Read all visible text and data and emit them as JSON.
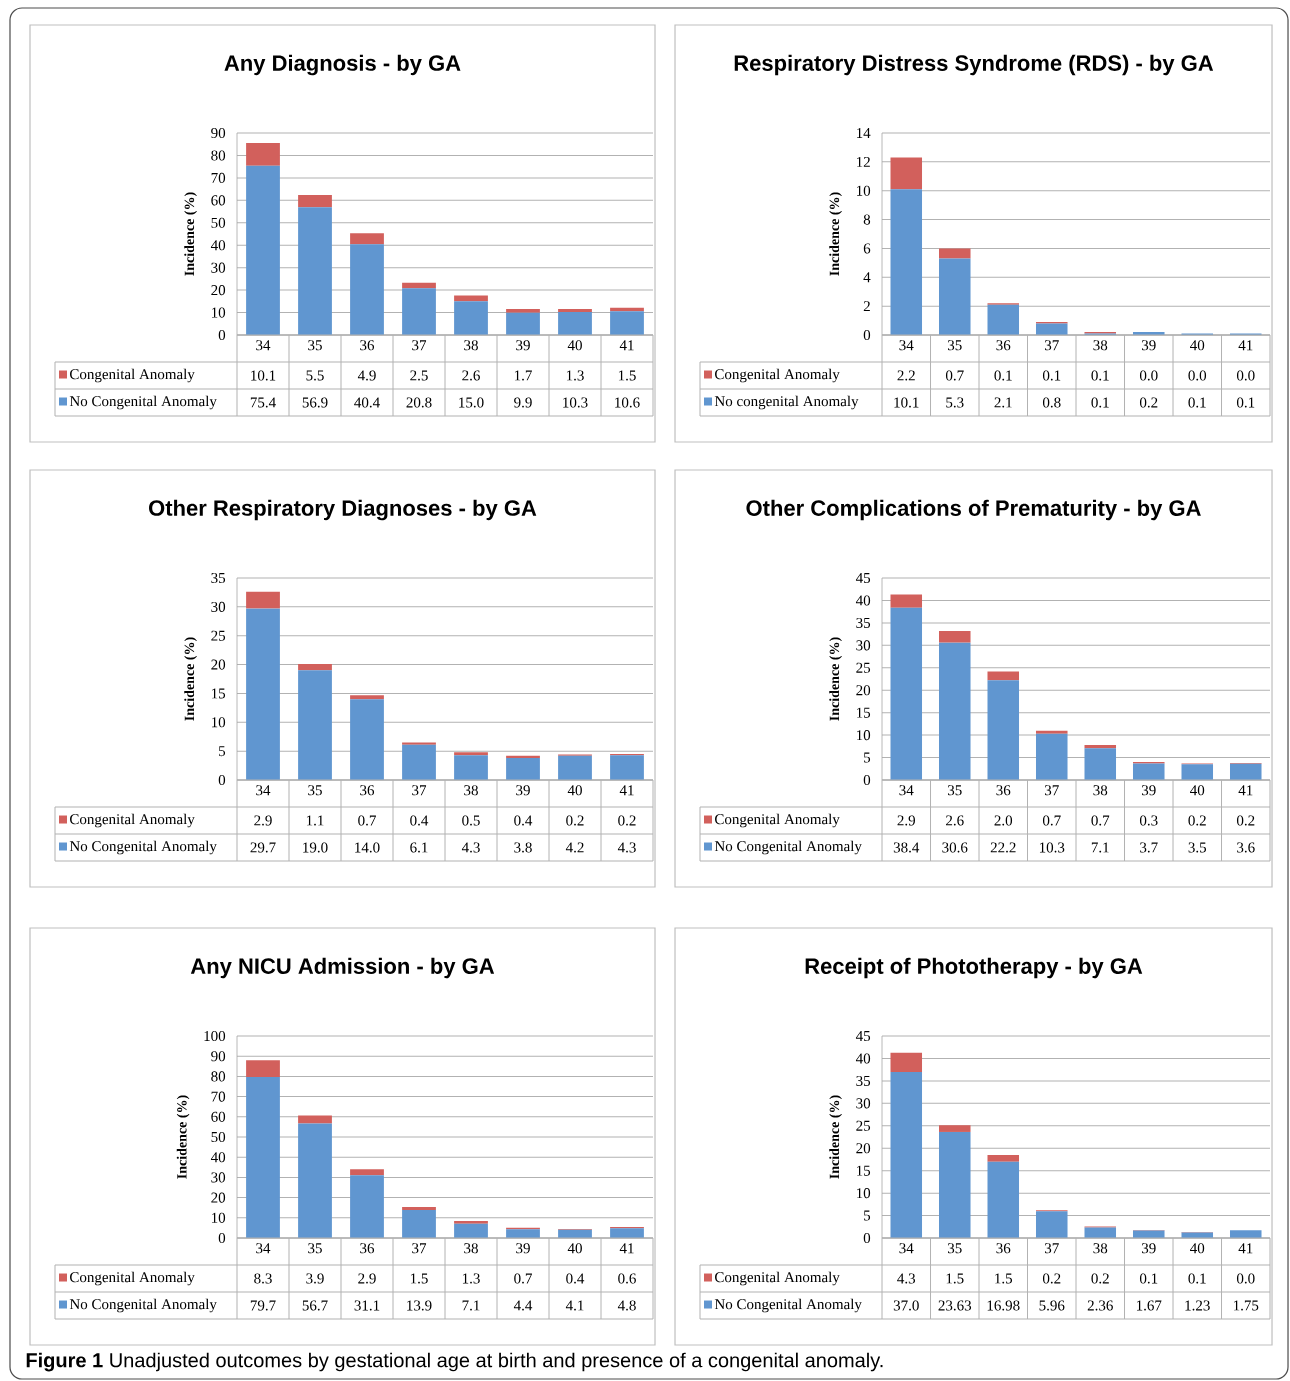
{
  "chart_data": [
    {
      "type": "bar",
      "stacked": true,
      "title": "Any Diagnosis - by GA",
      "ylabel": "Incidence (%)",
      "categories": [
        "34",
        "35",
        "36",
        "37",
        "38",
        "39",
        "40",
        "41"
      ],
      "ylim": [
        0,
        90
      ],
      "yticks": [
        0,
        10,
        20,
        30,
        40,
        50,
        60,
        70,
        80,
        90
      ],
      "grid": "y",
      "legend": "bottom",
      "annotations": [
        "**Figure 1** Unadjusted outcomes by gestational age at birth and presence of a congenital anomaly."
      ],
      "series": [
        {
          "name": "No Congenital Anomaly",
          "color": "#6096d0",
          "values": [
            75.4,
            56.9,
            40.4,
            20.8,
            15.0,
            9.9,
            10.3,
            10.6
          ],
          "value_labels": [
            "75.4",
            "56.9",
            "40.4",
            "20.8",
            "15.0",
            "9.9",
            "10.3",
            "10.6"
          ]
        },
        {
          "name": "Congenital Anomaly",
          "color": "#d2605c",
          "values": [
            10.1,
            5.5,
            4.9,
            2.5,
            2.6,
            1.7,
            1.3,
            1.5
          ],
          "value_labels": [
            "10.1",
            "5.5",
            "4.9",
            "2.5",
            "2.6",
            "1.7",
            "1.3",
            "1.5"
          ]
        }
      ]
    },
    {
      "type": "bar",
      "stacked": true,
      "title": "Respiratory Distress Syndrome (RDS) - by GA",
      "ylabel": "Incidence (%)",
      "categories": [
        "34",
        "35",
        "36",
        "37",
        "38",
        "39",
        "40",
        "41"
      ],
      "ylim": [
        0,
        14
      ],
      "yticks": [
        0,
        2,
        4,
        6,
        8,
        10,
        12,
        14
      ],
      "grid": "y",
      "legend": "bottom",
      "series": [
        {
          "name": "No congenital Anomaly",
          "color": "#6096d0",
          "values": [
            10.1,
            5.3,
            2.1,
            0.8,
            0.1,
            0.2,
            0.1,
            0.1
          ],
          "value_labels": [
            "10.1",
            "5.3",
            "2.1",
            "0.8",
            "0.1",
            "0.2",
            "0.1",
            "0.1"
          ]
        },
        {
          "name": "Congenital Anomaly",
          "color": "#d2605c",
          "values": [
            2.2,
            0.7,
            0.1,
            0.1,
            0.1,
            0.0,
            0.0,
            0.0
          ],
          "value_labels": [
            "2.2",
            "0.7",
            "0.1",
            "0.1",
            "0.1",
            "0.0",
            "0.0",
            "0.0"
          ]
        }
      ]
    },
    {
      "type": "bar",
      "stacked": true,
      "title": "Other Respiratory Diagnoses - by GA",
      "ylabel": "Incidence (%)",
      "categories": [
        "34",
        "35",
        "36",
        "37",
        "38",
        "39",
        "40",
        "41"
      ],
      "ylim": [
        0,
        35
      ],
      "yticks": [
        0,
        5,
        10,
        15,
        20,
        25,
        30,
        35
      ],
      "grid": "y",
      "legend": "bottom",
      "series": [
        {
          "name": "No Congenital Anomaly",
          "color": "#6096d0",
          "values": [
            29.7,
            19.0,
            14.0,
            6.1,
            4.3,
            3.8,
            4.2,
            4.3
          ],
          "value_labels": [
            "29.7",
            "19.0",
            "14.0",
            "6.1",
            "4.3",
            "3.8",
            "4.2",
            "4.3"
          ]
        },
        {
          "name": "Congenital Anomaly",
          "color": "#d2605c",
          "values": [
            2.9,
            1.1,
            0.7,
            0.4,
            0.5,
            0.4,
            0.2,
            0.2
          ],
          "value_labels": [
            "2.9",
            "1.1",
            "0.7",
            "0.4",
            "0.5",
            "0.4",
            "0.2",
            "0.2"
          ]
        }
      ]
    },
    {
      "type": "bar",
      "stacked": true,
      "title": "Other Complications of Prematurity - by GA",
      "ylabel": "Incidence (%)",
      "categories": [
        "34",
        "35",
        "36",
        "37",
        "38",
        "39",
        "40",
        "41"
      ],
      "ylim": [
        0,
        45
      ],
      "yticks": [
        0,
        5,
        10,
        15,
        20,
        25,
        30,
        35,
        40,
        45
      ],
      "grid": "y",
      "legend": "bottom",
      "series": [
        {
          "name": "No Congenital Anomaly",
          "color": "#6096d0",
          "values": [
            38.4,
            30.6,
            22.2,
            10.3,
            7.1,
            3.7,
            3.5,
            3.6
          ],
          "value_labels": [
            "38.4",
            "30.6",
            "22.2",
            "10.3",
            "7.1",
            "3.7",
            "3.5",
            "3.6"
          ]
        },
        {
          "name": "Congenital Anomaly",
          "color": "#d2605c",
          "values": [
            2.9,
            2.6,
            2.0,
            0.7,
            0.7,
            0.3,
            0.2,
            0.2
          ],
          "value_labels": [
            "2.9",
            "2.6",
            "2.0",
            "0.7",
            "0.7",
            "0.3",
            "0.2",
            "0.2"
          ]
        }
      ]
    },
    {
      "type": "bar",
      "stacked": true,
      "title": "Any NICU Admission - by GA",
      "ylabel": "Incidence (%)",
      "categories": [
        "34",
        "35",
        "36",
        "37",
        "38",
        "39",
        "40",
        "41"
      ],
      "ylim": [
        0,
        100
      ],
      "yticks": [
        0,
        10,
        20,
        30,
        40,
        50,
        60,
        70,
        80,
        90,
        100
      ],
      "grid": "y",
      "legend": "bottom",
      "series": [
        {
          "name": "No Congenital Anomaly",
          "color": "#6096d0",
          "values": [
            79.7,
            56.7,
            31.1,
            13.9,
            7.1,
            4.4,
            4.1,
            4.8
          ],
          "value_labels": [
            "79.7",
            "56.7",
            "31.1",
            "13.9",
            "7.1",
            "4.4",
            "4.1",
            "4.8"
          ]
        },
        {
          "name": "Congenital Anomaly",
          "color": "#d2605c",
          "values": [
            8.3,
            3.9,
            2.9,
            1.5,
            1.3,
            0.7,
            0.4,
            0.6
          ],
          "value_labels": [
            "8.3",
            "3.9",
            "2.9",
            "1.5",
            "1.3",
            "0.7",
            "0.4",
            "0.6"
          ]
        }
      ]
    },
    {
      "type": "bar",
      "stacked": true,
      "title": "Receipt of Phototherapy - by GA",
      "ylabel": "Incidence (%)",
      "categories": [
        "34",
        "35",
        "36",
        "37",
        "38",
        "39",
        "40",
        "41"
      ],
      "ylim": [
        0,
        45
      ],
      "yticks": [
        0,
        5,
        10,
        15,
        20,
        25,
        30,
        35,
        40,
        45
      ],
      "grid": "y",
      "legend": "bottom",
      "series": [
        {
          "name": "No Congenital Anomaly",
          "color": "#6096d0",
          "values": [
            37.0,
            23.63,
            16.98,
            5.96,
            2.36,
            1.67,
            1.23,
            1.75
          ],
          "value_labels": [
            "37.0",
            "23.63",
            "16.98",
            "5.96",
            "2.36",
            "1.67",
            "1.23",
            "1.75"
          ]
        },
        {
          "name": "Congenital Anomaly",
          "color": "#d2605c",
          "values": [
            4.3,
            1.5,
            1.5,
            0.2,
            0.2,
            0.1,
            0.1,
            0.0
          ],
          "value_labels": [
            "4.3",
            "1.5",
            "1.5",
            "0.2",
            "0.2",
            "0.1",
            "0.1",
            "0.0"
          ]
        }
      ]
    }
  ]
}
